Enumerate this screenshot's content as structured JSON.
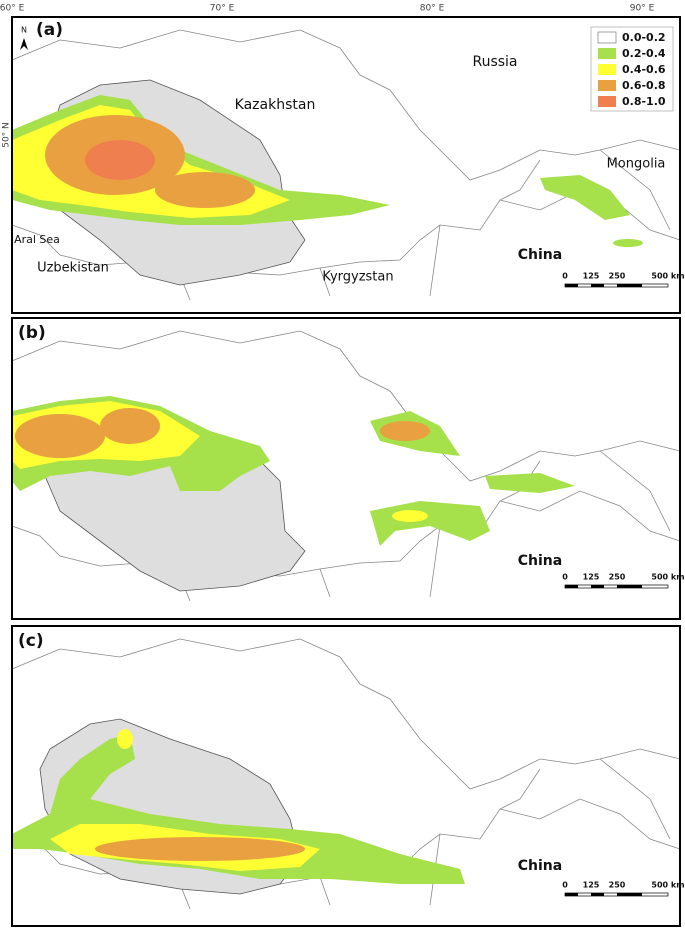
{
  "map": {
    "axis_labels": {
      "top": [
        "60° E",
        "70° E",
        "80° E",
        "90° E"
      ],
      "left": "50° N"
    },
    "north": "N",
    "legend": [
      "0.0-0.2",
      "0.2-0.4",
      "0.4-0.6",
      "0.6-0.8",
      "0.8-1.0"
    ],
    "panels": [
      {
        "label": "(a)",
        "countries": [
          "Russia",
          "Kazakhstan",
          "Mongolia",
          "China",
          "Aral Sea",
          "Uzbekistan",
          "Kyrgyzstan"
        ]
      },
      {
        "label": "(b)",
        "countries": [
          "China"
        ]
      },
      {
        "label": "(c)",
        "countries": [
          "China"
        ]
      }
    ],
    "scale_bar": [
      "0",
      "125",
      "250",
      "500 km"
    ]
  }
}
